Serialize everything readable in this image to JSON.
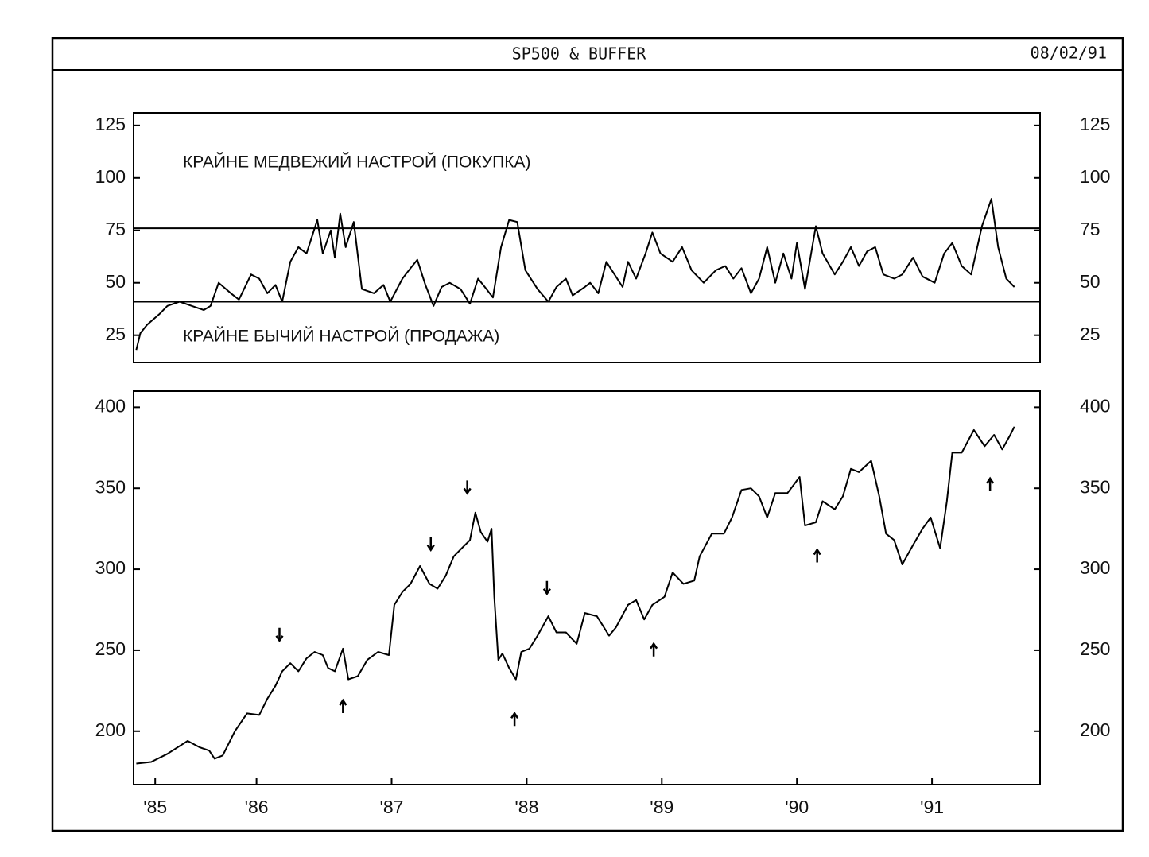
{
  "header": {
    "title": "SP500 & BUFFER",
    "date": "08/02/91"
  },
  "chart_data": [
    {
      "type": "line",
      "color": "#000000",
      "annotations": [
        "КРАЙНЕ МЕДВЕЖИЙ НАСТРОЙ (ПОКУПКА)",
        "КРАЙНЕ БЫЧИЙ НАСТРОЙ (ПРОДАЖА)"
      ],
      "hlines": [
        76,
        41
      ],
      "xlim": [
        1985.09,
        1991.8
      ],
      "ylim": [
        12,
        131
      ],
      "yticks": [
        25,
        50,
        75,
        100,
        125
      ],
      "x": [
        1985.11,
        1985.14,
        1985.19,
        1985.28,
        1985.34,
        1985.43,
        1985.52,
        1985.61,
        1985.66,
        1985.72,
        1985.81,
        1985.87,
        1985.96,
        1986.02,
        1986.08,
        1986.14,
        1986.19,
        1986.25,
        1986.31,
        1986.37,
        1986.45,
        1986.49,
        1986.55,
        1986.58,
        1986.62,
        1986.66,
        1986.72,
        1986.78,
        1986.87,
        1986.94,
        1986.99,
        1987.08,
        1987.14,
        1987.19,
        1987.25,
        1987.31,
        1987.37,
        1987.43,
        1987.51,
        1987.58,
        1987.64,
        1987.69,
        1987.75,
        1987.81,
        1987.87,
        1987.93,
        1987.99,
        1988.08,
        1988.16,
        1988.22,
        1988.29,
        1988.34,
        1988.43,
        1988.47,
        1988.53,
        1988.59,
        1988.65,
        1988.71,
        1988.75,
        1988.81,
        1988.88,
        1988.93,
        1988.99,
        1989.08,
        1989.15,
        1989.22,
        1989.31,
        1989.4,
        1989.47,
        1989.53,
        1989.59,
        1989.66,
        1989.72,
        1989.78,
        1989.84,
        1989.9,
        1989.96,
        1990.0,
        1990.06,
        1990.14,
        1990.19,
        1990.28,
        1990.34,
        1990.4,
        1990.46,
        1990.52,
        1990.58,
        1990.64,
        1990.72,
        1990.78,
        1990.86,
        1990.93,
        1991.02,
        1991.09,
        1991.15,
        1991.22,
        1991.29,
        1991.37,
        1991.44,
        1991.49,
        1991.55,
        1991.61
      ],
      "values": [
        18,
        26,
        30,
        35,
        39,
        41,
        39,
        37,
        39,
        50,
        45,
        42,
        54,
        52,
        45,
        49,
        41,
        60,
        67,
        64,
        80,
        64,
        75,
        62,
        83,
        67,
        79,
        47,
        45,
        49,
        41,
        52,
        57,
        61,
        49,
        39,
        48,
        50,
        47,
        40,
        52,
        48,
        43,
        67,
        80,
        79,
        56,
        47,
        41,
        48,
        52,
        44,
        48,
        50,
        45,
        60,
        54,
        48,
        60,
        52,
        64,
        74,
        64,
        60,
        67,
        56,
        50,
        56,
        58,
        52,
        57,
        45,
        52,
        67,
        50,
        64,
        52,
        69,
        47,
        77,
        64,
        54,
        60,
        67,
        58,
        65,
        67,
        54,
        52,
        54,
        62,
        53,
        50,
        64,
        69,
        58,
        54,
        77,
        90,
        67,
        52,
        48
      ]
    },
    {
      "type": "line",
      "color": "#000000",
      "xlim": [
        1985.09,
        1991.8
      ],
      "ylim": [
        167,
        410
      ],
      "yticks": [
        200,
        250,
        300,
        350,
        400
      ],
      "xticks": [
        {
          "value": 1985.25,
          "label": "'85"
        },
        {
          "value": 1986,
          "label": "'86"
        },
        {
          "value": 1987,
          "label": "'87"
        },
        {
          "value": 1988,
          "label": "'88"
        },
        {
          "value": 1989,
          "label": "'89"
        },
        {
          "value": 1990,
          "label": "'90"
        },
        {
          "value": 1991,
          "label": "'91"
        }
      ],
      "x": [
        1985.11,
        1985.22,
        1985.34,
        1985.49,
        1985.58,
        1985.65,
        1985.69,
        1985.75,
        1985.84,
        1985.93,
        1986.02,
        1986.08,
        1986.14,
        1986.19,
        1986.25,
        1986.31,
        1986.37,
        1986.43,
        1986.49,
        1986.53,
        1986.58,
        1986.64,
        1986.68,
        1986.75,
        1986.82,
        1986.9,
        1986.98,
        1987.02,
        1987.08,
        1987.14,
        1987.21,
        1987.28,
        1987.34,
        1987.4,
        1987.46,
        1987.52,
        1987.58,
        1987.62,
        1987.66,
        1987.71,
        1987.74,
        1987.76,
        1987.79,
        1987.82,
        1987.87,
        1987.92,
        1987.96,
        1988.02,
        1988.08,
        1988.16,
        1988.22,
        1988.29,
        1988.37,
        1988.43,
        1988.52,
        1988.61,
        1988.66,
        1988.75,
        1988.81,
        1988.87,
        1988.93,
        1989.02,
        1989.08,
        1989.16,
        1989.24,
        1989.28,
        1989.37,
        1989.46,
        1989.52,
        1989.59,
        1989.66,
        1989.72,
        1989.78,
        1989.84,
        1989.93,
        1990.02,
        1990.06,
        1990.14,
        1990.19,
        1990.28,
        1990.34,
        1990.4,
        1990.46,
        1990.55,
        1990.61,
        1990.66,
        1990.72,
        1990.78,
        1990.86,
        1990.93,
        1990.99,
        1991.06,
        1991.11,
        1991.15,
        1991.22,
        1991.31,
        1991.39,
        1991.46,
        1991.52,
        1991.58,
        1991.61
      ],
      "values": [
        180,
        181,
        186,
        194,
        190,
        188,
        183,
        185,
        200,
        211,
        210,
        220,
        228,
        237,
        242,
        237,
        245,
        249,
        247,
        239,
        237,
        251,
        232,
        234,
        244,
        249,
        247,
        278,
        286,
        291,
        302,
        291,
        288,
        296,
        308,
        313,
        318,
        335,
        323,
        317,
        325,
        283,
        244,
        248,
        239,
        232,
        249,
        251,
        259,
        271,
        261,
        261,
        254,
        273,
        271,
        259,
        264,
        278,
        281,
        269,
        278,
        283,
        298,
        291,
        293,
        308,
        322,
        322,
        332,
        349,
        350,
        345,
        332,
        347,
        347,
        357,
        327,
        329,
        342,
        337,
        345,
        362,
        360,
        367,
        345,
        322,
        318,
        303,
        315,
        325,
        332,
        313,
        342,
        372,
        372,
        386,
        376,
        383,
        374,
        383,
        388
      ],
      "signals": {
        "down": {
          "x": [
            1986.17,
            1987.29,
            1987.56,
            1988.15
          ],
          "values": [
            254,
            310,
            345,
            283
          ]
        },
        "up": {
          "x": [
            1986.64,
            1987.91,
            1988.94,
            1990.15,
            1991.43
          ],
          "values": [
            221,
            213,
            256,
            314,
            358
          ]
        }
      }
    }
  ]
}
